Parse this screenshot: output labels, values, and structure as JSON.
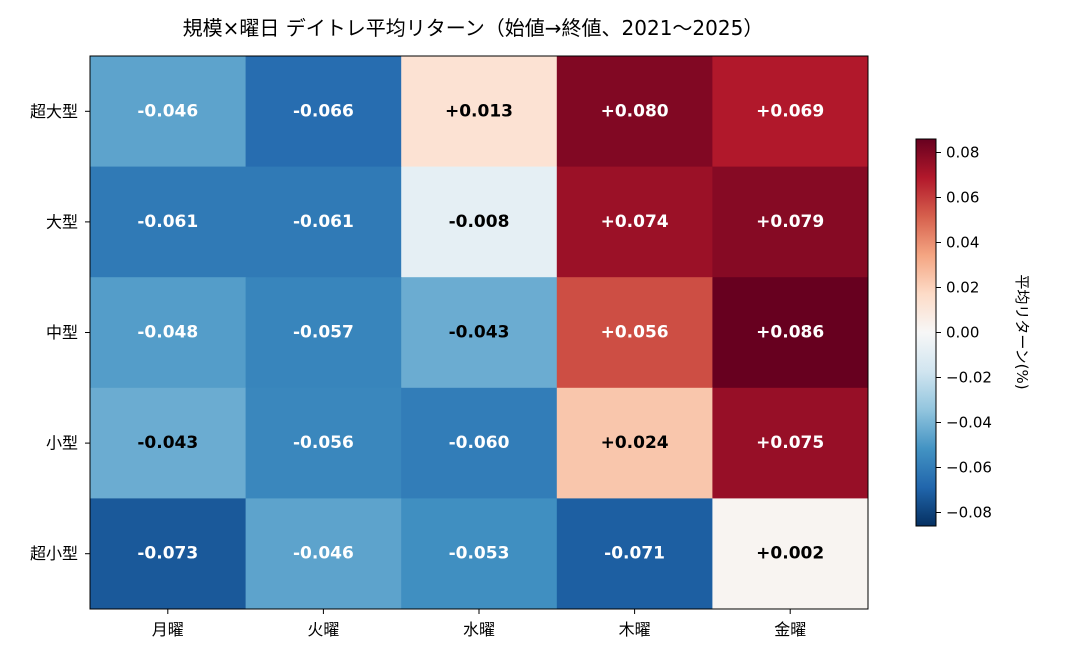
{
  "chart_data": {
    "type": "heatmap",
    "title": "規模×曜日 デイトレ平均リターン（始値→終値、2021～2025）",
    "x_categories": [
      "月曜",
      "火曜",
      "水曜",
      "木曜",
      "金曜"
    ],
    "y_categories": [
      "超大型",
      "大型",
      "中型",
      "小型",
      "超小型"
    ],
    "values": [
      [
        -0.046,
        -0.066,
        0.013,
        0.08,
        0.069
      ],
      [
        -0.061,
        -0.061,
        -0.008,
        0.074,
        0.079
      ],
      [
        -0.048,
        -0.057,
        -0.043,
        0.056,
        0.086
      ],
      [
        -0.043,
        -0.056,
        -0.06,
        0.024,
        0.075
      ],
      [
        -0.073,
        -0.046,
        -0.053,
        -0.071,
        0.002
      ]
    ],
    "cell_labels": [
      [
        "-0.046",
        "-0.066",
        "+0.013",
        "+0.080",
        "+0.069"
      ],
      [
        "-0.061",
        "-0.061",
        "-0.008",
        "+0.074",
        "+0.079"
      ],
      [
        "-0.048",
        "-0.057",
        "-0.043",
        "+0.056",
        "+0.086"
      ],
      [
        "-0.043",
        "-0.056",
        "-0.060",
        "+0.024",
        "+0.075"
      ],
      [
        "-0.073",
        "-0.046",
        "-0.053",
        "-0.071",
        "+0.002"
      ]
    ],
    "cell_label_colors": [
      [
        "#ffffff",
        "#ffffff",
        "#000000",
        "#ffffff",
        "#ffffff"
      ],
      [
        "#ffffff",
        "#ffffff",
        "#000000",
        "#ffffff",
        "#ffffff"
      ],
      [
        "#ffffff",
        "#ffffff",
        "#000000",
        "#ffffff",
        "#ffffff"
      ],
      [
        "#000000",
        "#ffffff",
        "#ffffff",
        "#000000",
        "#ffffff"
      ],
      [
        "#ffffff",
        "#ffffff",
        "#ffffff",
        "#ffffff",
        "#000000"
      ]
    ],
    "colormap": "RdBu_r",
    "colormap_stops": [
      "#053061",
      "#2166ac",
      "#4393c3",
      "#92c5de",
      "#d1e5f0",
      "#f7f7f7",
      "#fddbc7",
      "#f4a582",
      "#d6604d",
      "#b2182b",
      "#67001f"
    ],
    "vmin": -0.086,
    "vmax": 0.086,
    "colorbar": {
      "label": "平均リターン(%)",
      "ticks": [
        -0.08,
        -0.06,
        -0.04,
        -0.02,
        0.0,
        0.02,
        0.04,
        0.06,
        0.08
      ],
      "tick_labels": [
        "−0.08",
        "−0.06",
        "−0.04",
        "−0.02",
        "0.00",
        "0.02",
        "0.04",
        "0.06",
        "0.08"
      ]
    },
    "grid": false
  }
}
